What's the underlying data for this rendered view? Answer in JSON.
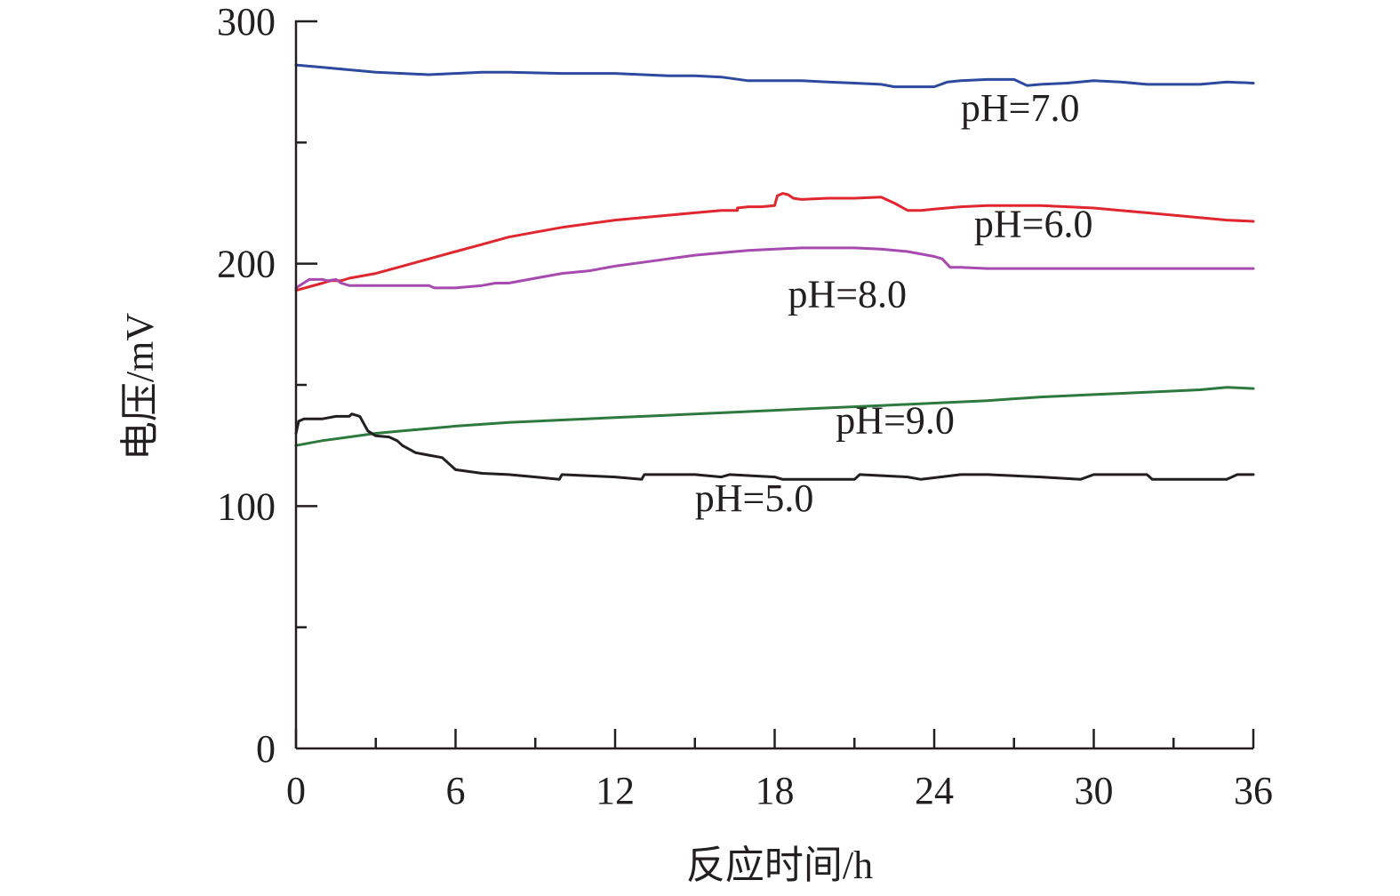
{
  "chart_data": {
    "type": "line",
    "xlabel": "反应时间/h",
    "ylabel": "电压/mV",
    "xlim": [
      0,
      36
    ],
    "ylim": [
      0,
      300
    ],
    "xticks": [
      0,
      6,
      12,
      18,
      24,
      30,
      36
    ],
    "xticks_minor": [
      3,
      9,
      15,
      21,
      27,
      33
    ],
    "yticks": [
      0,
      100,
      200,
      300
    ],
    "yticks_minor": [
      50,
      150,
      250
    ],
    "grid": false,
    "series": [
      {
        "name": "pH=7.0",
        "color": "#2e4a9e",
        "label_at": [
          25,
          259
        ],
        "x": [
          0,
          1,
          2,
          3,
          4,
          5,
          6,
          7,
          8,
          10,
          12,
          14,
          15,
          16,
          17,
          18,
          19,
          20,
          21,
          22,
          22.5,
          23,
          24,
          24.5,
          25,
          26,
          27,
          27.5,
          28,
          29,
          30,
          31,
          32,
          33,
          34,
          35,
          36
        ],
        "y": [
          282,
          281,
          280,
          279,
          278.5,
          278,
          278.5,
          279,
          279,
          278.5,
          278.5,
          277.5,
          277.5,
          277,
          275.5,
          275.5,
          275.5,
          275,
          274.5,
          274,
          273,
          273,
          273,
          275,
          275.5,
          276,
          276,
          273.5,
          274,
          274.5,
          275.5,
          275,
          274,
          274,
          274,
          275,
          274.5
        ]
      },
      {
        "name": "pH=6.0",
        "color": "#e0262e",
        "label_at": [
          25.5,
          211
        ],
        "x": [
          0,
          1,
          1.3,
          1.7,
          2,
          3,
          4,
          5,
          6,
          7,
          8,
          9,
          10,
          11,
          12,
          13,
          14,
          15,
          16,
          16.6,
          16.6,
          17,
          17.5,
          18,
          18.1,
          18.3,
          18.5,
          18.7,
          19,
          20,
          21,
          22,
          22.5,
          23,
          23.5,
          24,
          25,
          26,
          27,
          28,
          29,
          30,
          31,
          32,
          33,
          34,
          35,
          36
        ],
        "y": [
          189,
          192,
          193,
          193,
          194,
          196,
          199,
          202,
          205,
          208,
          211,
          213,
          215,
          216.5,
          218,
          219,
          220,
          221,
          222,
          222,
          223,
          223.5,
          223.5,
          224,
          228,
          229,
          228.5,
          227,
          226.5,
          227,
          227,
          227.5,
          225,
          222,
          222,
          222.5,
          223.5,
          224,
          224,
          224,
          223.5,
          223,
          222,
          221,
          220,
          219,
          218,
          217.5
        ]
      },
      {
        "name": "pH=8.0",
        "color": "#a64ab0",
        "label_at": [
          18.5,
          182
        ],
        "x": [
          0,
          0.5,
          1,
          1.2,
          1.5,
          1.7,
          2,
          3,
          4,
          5,
          5.2,
          6,
          7,
          7.5,
          8,
          9,
          10,
          11,
          12,
          13,
          14,
          15,
          16,
          17,
          18,
          19,
          20,
          21,
          22,
          23,
          24,
          24.3,
          24.6,
          25,
          26,
          28,
          30,
          32,
          34,
          36
        ],
        "y": [
          190,
          193.5,
          193.5,
          193,
          193.5,
          192,
          191,
          191,
          191,
          191,
          190,
          190,
          191,
          192,
          192,
          194,
          196,
          197,
          199,
          200.5,
          202,
          203.5,
          204.5,
          205.5,
          206,
          206.5,
          206.5,
          206.5,
          206,
          205,
          203,
          202,
          198.5,
          198.5,
          198,
          198,
          198,
          198,
          198,
          198
        ]
      },
      {
        "name": "pH=9.0",
        "color": "#2e7a3e",
        "label_at": [
          20.3,
          130
        ],
        "x": [
          0,
          1,
          2,
          3,
          4,
          5,
          6,
          8,
          10,
          12,
          14,
          16,
          18,
          20,
          22,
          24,
          26,
          28,
          30,
          32,
          34,
          35,
          36
        ],
        "y": [
          125,
          127,
          128.5,
          130,
          131,
          132,
          133,
          134.5,
          135.5,
          136.5,
          137.5,
          138.5,
          139.5,
          140.5,
          141.5,
          142.5,
          143.5,
          145,
          146,
          147,
          148,
          149,
          148.5
        ]
      },
      {
        "name": "pH=5.0",
        "color": "#231f20",
        "label_at": [
          15,
          98
        ],
        "x": [
          0,
          0.1,
          0.3,
          1,
          1.5,
          2,
          2.1,
          2.4,
          2.7,
          3,
          3.5,
          3.8,
          4,
          4.5,
          5,
          5.5,
          6,
          7,
          8,
          9,
          9.9,
          10,
          12,
          13,
          13.1,
          15,
          16,
          16.3,
          18,
          18.3,
          20,
          21,
          21.2,
          23,
          23.5,
          25,
          26,
          28,
          29.5,
          30,
          32,
          32.2,
          34,
          35,
          35.4,
          36
        ],
        "y": [
          130,
          135,
          136,
          136,
          137,
          137,
          138,
          137,
          131,
          129,
          128.5,
          127,
          125,
          122,
          121,
          120,
          115,
          113.5,
          113,
          112,
          111,
          113,
          112,
          111,
          113,
          113,
          112,
          113,
          112,
          111,
          111,
          111,
          113,
          112,
          111,
          113,
          113,
          112,
          111,
          113,
          113,
          111,
          111,
          111,
          113,
          113
        ]
      }
    ]
  }
}
